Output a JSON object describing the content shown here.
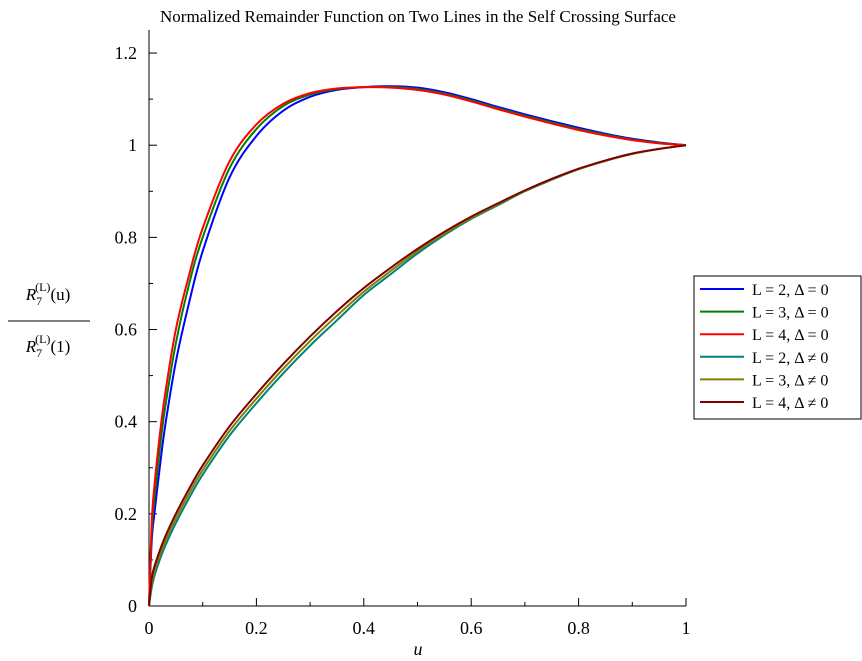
{
  "chart_data": {
    "type": "line",
    "title": "Normalized Remainder Function on Two Lines in the Self Crossing Surface",
    "xlabel": "u",
    "ylabel": {
      "numerator": "R_7^(L)(u)",
      "denominator": "R_7^(L)(1)",
      "num_base": "R",
      "num_sub": "7",
      "num_sup": "(L)",
      "num_arg": "(u)",
      "den_base": "R",
      "den_sub": "7",
      "den_sup": "(L)",
      "den_arg": "(1)"
    },
    "xlim": [
      0,
      1
    ],
    "ylim": [
      0,
      1.25
    ],
    "x_ticks": [
      0,
      0.2,
      0.4,
      0.6,
      0.8,
      1
    ],
    "x_tick_labels": [
      "0",
      "0.2",
      "0.4",
      "0.6",
      "0.8",
      "1"
    ],
    "y_ticks": [
      0,
      0.2,
      0.4,
      0.6,
      0.8,
      1,
      1.2
    ],
    "y_tick_labels": [
      "0",
      "0.2",
      "0.4",
      "0.6",
      "0.8",
      "1",
      "1.2"
    ],
    "grid": false,
    "legend_position": "right",
    "x": [
      0,
      0.005,
      0.01,
      0.02,
      0.03,
      0.05,
      0.075,
      0.1,
      0.15,
      0.2,
      0.25,
      0.3,
      0.35,
      0.4,
      0.45,
      0.5,
      0.55,
      0.6,
      0.65,
      0.7,
      0.75,
      0.8,
      0.85,
      0.9,
      0.95,
      1.0
    ],
    "series": [
      {
        "name": "L = 2, Δ = 0",
        "color": "#0000ff",
        "values": [
          0,
          0.14,
          0.2,
          0.3,
          0.39,
          0.53,
          0.66,
          0.77,
          0.93,
          1.02,
          1.075,
          1.105,
          1.12,
          1.126,
          1.128,
          1.125,
          1.115,
          1.1,
          1.083,
          1.067,
          1.052,
          1.038,
          1.025,
          1.014,
          1.006,
          1.0
        ]
      },
      {
        "name": "L = 3, Δ = 0",
        "color": "#008000",
        "values": [
          0,
          0.16,
          0.23,
          0.34,
          0.43,
          0.57,
          0.7,
          0.8,
          0.95,
          1.035,
          1.085,
          1.11,
          1.122,
          1.126,
          1.126,
          1.122,
          1.112,
          1.097,
          1.08,
          1.064,
          1.049,
          1.035,
          1.023,
          1.012,
          1.005,
          1.0
        ]
      },
      {
        "name": "L = 4, Δ = 0",
        "color": "#ff0000",
        "values": [
          0,
          0.18,
          0.26,
          0.37,
          0.46,
          0.6,
          0.72,
          0.82,
          0.965,
          1.045,
          1.09,
          1.113,
          1.123,
          1.126,
          1.125,
          1.12,
          1.11,
          1.095,
          1.078,
          1.062,
          1.047,
          1.033,
          1.021,
          1.011,
          1.004,
          1.0
        ]
      },
      {
        "name": "L = 2, Δ ≠ 0",
        "color": "#008080",
        "values": [
          0,
          0.04,
          0.065,
          0.1,
          0.13,
          0.18,
          0.235,
          0.285,
          0.37,
          0.44,
          0.505,
          0.565,
          0.62,
          0.675,
          0.72,
          0.765,
          0.805,
          0.84,
          0.87,
          0.9,
          0.925,
          0.948,
          0.966,
          0.981,
          0.992,
          1.0
        ]
      },
      {
        "name": "L = 3, Δ ≠ 0",
        "color": "#808000",
        "values": [
          0,
          0.05,
          0.075,
          0.11,
          0.14,
          0.19,
          0.245,
          0.295,
          0.38,
          0.45,
          0.515,
          0.575,
          0.63,
          0.682,
          0.727,
          0.77,
          0.808,
          0.842,
          0.872,
          0.901,
          0.926,
          0.948,
          0.966,
          0.981,
          0.992,
          1.0
        ]
      },
      {
        "name": "L = 4, Δ ≠ 0",
        "color": "#800000",
        "values": [
          0,
          0.06,
          0.085,
          0.12,
          0.15,
          0.2,
          0.255,
          0.305,
          0.39,
          0.46,
          0.525,
          0.585,
          0.64,
          0.69,
          0.734,
          0.775,
          0.812,
          0.845,
          0.874,
          0.902,
          0.927,
          0.949,
          0.967,
          0.982,
          0.992,
          1.0
        ]
      }
    ]
  }
}
